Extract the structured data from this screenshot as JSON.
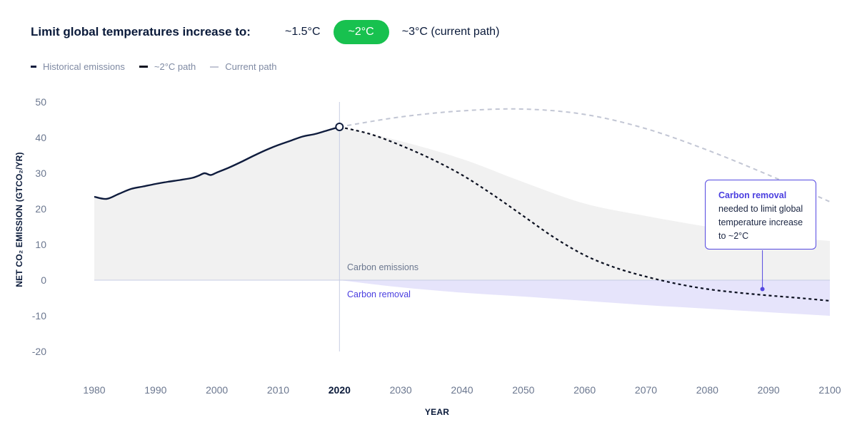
{
  "header": {
    "title": "Limit global temperatures increase to:",
    "options": [
      {
        "label": "~1.5°C",
        "selected": false
      },
      {
        "label": "~2°C",
        "selected": true
      },
      {
        "label": "~3°C (current path)",
        "selected": false
      }
    ],
    "selected_color": "#18c14f"
  },
  "legend": {
    "items": [
      {
        "label": "Historical emissions",
        "style": "solid"
      },
      {
        "label": "~2°C path",
        "style": "dashed-dark"
      },
      {
        "label": "Current path",
        "style": "dashed-light"
      }
    ]
  },
  "colors": {
    "historical": "#0f1c3d",
    "path_2c": "#0a0f1f",
    "current_path": "#c2c6d4",
    "emissions_fill": "#f1f1f1",
    "removal_fill": "#e6e4fb",
    "removal_accent": "#4a3ee0",
    "axis_text": "#6b778f"
  },
  "chart_data": {
    "type": "line",
    "xlabel": "YEAR",
    "ylabel": "NET CO₂ EMISSION (GTCO₂/YR)",
    "xlim": [
      1980,
      2100
    ],
    "ylim": [
      -20,
      50
    ],
    "x_ticks": [
      1980,
      1990,
      2000,
      2010,
      2020,
      2030,
      2040,
      2050,
      2060,
      2070,
      2080,
      2090,
      2100
    ],
    "highlight_x_tick": 2020,
    "y_ticks": [
      50,
      40,
      30,
      20,
      10,
      0,
      -10,
      -20
    ],
    "grid": false,
    "series": [
      {
        "name": "Historical emissions",
        "style": "solid",
        "x": [
          1980,
          1982,
          1984,
          1986,
          1988,
          1990,
          1992,
          1994,
          1996,
          1997,
          1998,
          1999,
          2000,
          2002,
          2004,
          2006,
          2008,
          2010,
          2012,
          2014,
          2016,
          2018,
          2020
        ],
        "y": [
          23.4,
          22.8,
          24.2,
          25.6,
          26.3,
          27.0,
          27.6,
          28.1,
          28.7,
          29.3,
          30.0,
          29.5,
          30.2,
          31.6,
          33.2,
          34.9,
          36.5,
          37.9,
          39.1,
          40.3,
          41.0,
          42.0,
          43.0
        ]
      },
      {
        "name": "~2°C path",
        "style": "dashed",
        "x": [
          2020,
          2025,
          2030,
          2035,
          2040,
          2045,
          2050,
          2055,
          2060,
          2065,
          2070,
          2075,
          2080,
          2085,
          2090,
          2095,
          2100
        ],
        "y": [
          43.0,
          41.0,
          37.8,
          34.0,
          29.5,
          24.0,
          18.0,
          12.0,
          7.0,
          3.5,
          1.0,
          -1.0,
          -2.5,
          -3.5,
          -4.3,
          -5.0,
          -5.8
        ]
      },
      {
        "name": "Current path",
        "style": "dashed",
        "x": [
          2020,
          2030,
          2040,
          2050,
          2060,
          2070,
          2080,
          2090,
          2100
        ],
        "y": [
          43.0,
          45.8,
          47.5,
          48.0,
          46.5,
          42.5,
          36.5,
          29.5,
          22.0
        ]
      }
    ],
    "bands": {
      "carbon_emissions_upper": {
        "x": [
          1980,
          2020,
          2030,
          2040,
          2050,
          2060,
          2070,
          2080,
          2090,
          2100
        ],
        "y": [
          23.4,
          43.0,
          39.0,
          34.0,
          27.5,
          21.5,
          18.0,
          15.0,
          12.5,
          11.0
        ]
      },
      "carbon_removal_lower": {
        "x": [
          2020,
          2030,
          2040,
          2050,
          2060,
          2070,
          2080,
          2090,
          2100
        ],
        "y": [
          0.0,
          -2.0,
          -3.5,
          -4.6,
          -5.8,
          -7.0,
          -8.0,
          -9.0,
          -10.0
        ]
      }
    },
    "annotations": {
      "emissions_label": "Carbon emissions",
      "removal_label": "Carbon removal",
      "callout": {
        "title": "Carbon removal",
        "text": "needed to limit global temperature increase to ~2°C",
        "anchor": {
          "x": 2089,
          "y": -2.5
        }
      },
      "marker": {
        "x": 2020,
        "y": 43.0
      }
    }
  }
}
